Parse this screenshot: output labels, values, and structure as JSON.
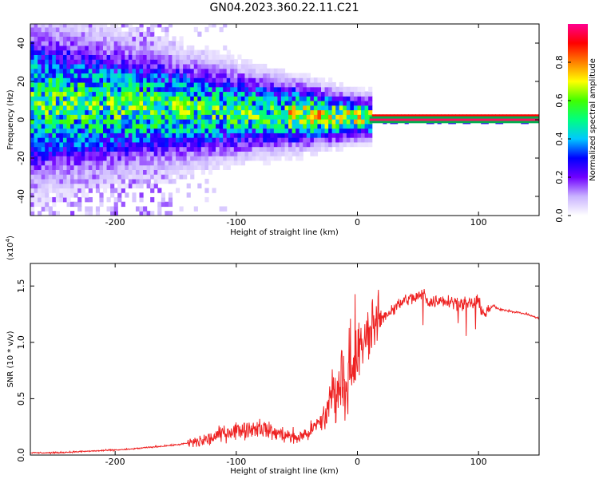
{
  "title": "GN04.2023.360.22.11.C21",
  "chart_data": [
    {
      "type": "heatmap",
      "xlabel": "Height of straight line (km)",
      "ylabel": "Frequency (Hz)",
      "xlim": [
        -270,
        150
      ],
      "ylim": [
        -50,
        50
      ],
      "xticks": [
        -200,
        -100,
        0,
        100
      ],
      "xtick_labels": [
        "-200",
        "-100",
        "0",
        "100"
      ],
      "yticks": [
        -40,
        -20,
        0,
        20,
        40
      ],
      "ytick_labels": [
        "-40",
        "-20",
        "0",
        "20",
        "40"
      ],
      "colorbar": {
        "label": "Normalized spectral amplitude",
        "range": [
          0.0,
          1.0
        ],
        "ticks": [
          0.0,
          0.2,
          0.4,
          0.6,
          0.8
        ],
        "tick_labels": [
          "0.0",
          "0.2",
          "0.4",
          "0.6",
          "0.8"
        ],
        "colors": [
          "#ffffff",
          "#c9b3ff",
          "#7000ff",
          "#0000ff",
          "#00c8ff",
          "#00ff80",
          "#40ff00",
          "#ffff00",
          "#ff8000",
          "#ff0000",
          "#ff0090"
        ]
      },
      "grid": false
    },
    {
      "type": "line",
      "xlabel": "Height of straight line (km)",
      "ylabel": "SNR (10 * v/v)",
      "scale_label": "(x10",
      "scale_exp": "4",
      "scale_close": ")",
      "xlim": [
        -270,
        150
      ],
      "ylim": [
        0,
        1.7
      ],
      "xticks": [
        -200,
        -100,
        0,
        100
      ],
      "xtick_labels": [
        "-200",
        "-100",
        "0",
        "100"
      ],
      "yticks": [
        0.0,
        0.5,
        1.0,
        1.5
      ],
      "ytick_labels": [
        "0.0",
        "0.5",
        "1.0",
        "1.5"
      ],
      "color": "#ee2222",
      "grid": false,
      "series": [
        {
          "x": [
            -270,
            -250,
            -230,
            -210,
            -190,
            -170,
            -150,
            -130,
            -120,
            -110,
            -100,
            -90,
            -80,
            -70,
            -60,
            -50,
            -40,
            -30,
            -25,
            -20,
            -15,
            -10,
            -5,
            0,
            5,
            10,
            20,
            30,
            40,
            50,
            55,
            60,
            70,
            80,
            90,
            100,
            105,
            110,
            112,
            115,
            120,
            130,
            140,
            150
          ],
          "values": [
            0.02,
            0.02,
            0.03,
            0.04,
            0.05,
            0.07,
            0.09,
            0.12,
            0.15,
            0.2,
            0.22,
            0.23,
            0.25,
            0.2,
            0.18,
            0.15,
            0.2,
            0.3,
            0.38,
            0.55,
            0.6,
            0.58,
            0.65,
            0.85,
            1.0,
            1.1,
            1.22,
            1.3,
            1.38,
            1.4,
            1.43,
            1.35,
            1.38,
            1.36,
            1.33,
            1.36,
            1.25,
            1.3,
            1.33,
            1.3,
            1.29,
            1.27,
            1.25,
            1.21
          ]
        }
      ]
    }
  ]
}
